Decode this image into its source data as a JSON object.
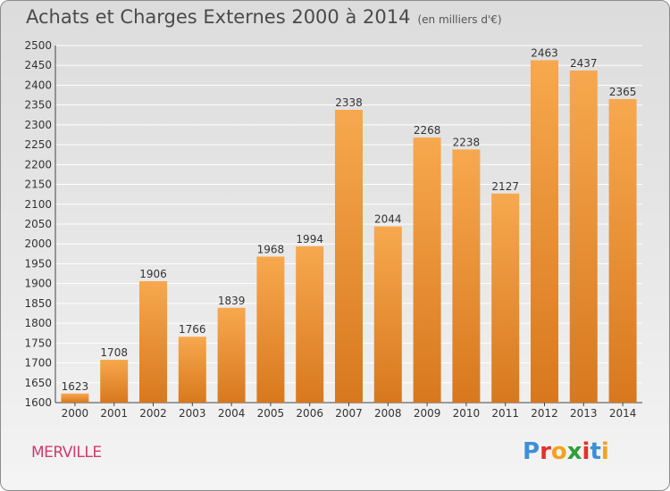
{
  "header": {
    "title": "Achats et Charges Externes 2000 à 2014",
    "unit": "(en milliers d'€)"
  },
  "footer": {
    "commune": "MERVILLE",
    "logo": "Proxiti"
  },
  "colors": {
    "bar_top": "#f7a84e",
    "bar_bottom": "#d8781e",
    "grid": "#ffffff",
    "commune_text": "#d23a6f"
  },
  "chart_data": {
    "type": "bar",
    "title": "Achats et Charges Externes 2000 à 2014",
    "subtitle": "(en milliers d'€)",
    "categories": [
      "2000",
      "2001",
      "2002",
      "2003",
      "2004",
      "2005",
      "2006",
      "2007",
      "2008",
      "2009",
      "2010",
      "2011",
      "2012",
      "2013",
      "2014"
    ],
    "values": [
      1623,
      1708,
      1906,
      1766,
      1839,
      1968,
      1994,
      2338,
      2044,
      2268,
      2238,
      2127,
      2463,
      2437,
      2365
    ],
    "ylim": [
      1600,
      2500
    ],
    "yticks": [
      1600,
      1650,
      1700,
      1750,
      1800,
      1850,
      1900,
      1950,
      2000,
      2050,
      2100,
      2150,
      2200,
      2250,
      2300,
      2350,
      2400,
      2450,
      2500
    ],
    "grid": true,
    "xlabel": "",
    "ylabel": ""
  }
}
